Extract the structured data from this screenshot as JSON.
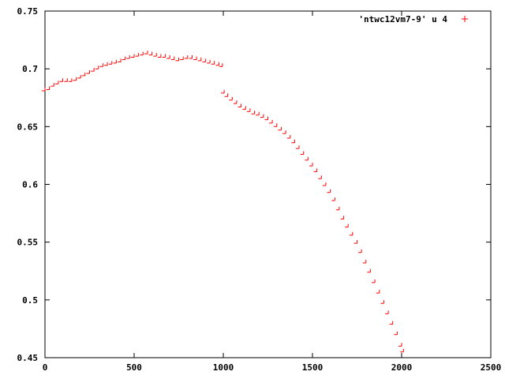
{
  "chart_data": {
    "type": "scatter",
    "title": "",
    "xlabel": "",
    "ylabel": "",
    "xlim": [
      0,
      2500
    ],
    "ylim": [
      0.45,
      0.75
    ],
    "grid": false,
    "legend_position": "top-right",
    "x_ticks": [
      0,
      500,
      1000,
      1500,
      2000,
      2500
    ],
    "x_tick_labels": [
      "0",
      "500",
      "1000",
      "1500",
      "2000",
      "2500"
    ],
    "y_ticks": [
      0.45,
      0.5,
      0.55,
      0.6,
      0.65,
      0.7,
      0.75
    ],
    "y_tick_labels": [
      "0.45",
      "0.5",
      "0.55",
      "0.6",
      "0.65",
      "0.7",
      "0.75"
    ],
    "series": [
      {
        "name": "'ntwc12vm7-9' u 4",
        "color": "#ff0000",
        "marker": "plus",
        "x": [
          0,
          25,
          50,
          75,
          100,
          125,
          150,
          175,
          200,
          225,
          250,
          275,
          300,
          325,
          350,
          375,
          400,
          425,
          450,
          475,
          500,
          525,
          550,
          575,
          600,
          625,
          650,
          675,
          700,
          725,
          750,
          775,
          800,
          825,
          850,
          875,
          900,
          925,
          950,
          975,
          995,
          1005,
          1025,
          1050,
          1075,
          1100,
          1125,
          1150,
          1175,
          1200,
          1225,
          1250,
          1275,
          1300,
          1325,
          1350,
          1375,
          1400,
          1425,
          1450,
          1475,
          1500,
          1525,
          1550,
          1575,
          1600,
          1625,
          1650,
          1675,
          1700,
          1725,
          1750,
          1775,
          1800,
          1825,
          1850,
          1875,
          1900,
          1925,
          1950,
          1975,
          2000,
          2010
        ],
        "y": [
          0.681,
          0.682,
          0.685,
          0.687,
          0.689,
          0.689,
          0.689,
          0.69,
          0.692,
          0.694,
          0.696,
          0.698,
          0.7,
          0.702,
          0.703,
          0.704,
          0.705,
          0.706,
          0.708,
          0.709,
          0.71,
          0.711,
          0.712,
          0.713,
          0.712,
          0.711,
          0.71,
          0.71,
          0.709,
          0.708,
          0.707,
          0.708,
          0.709,
          0.709,
          0.708,
          0.707,
          0.706,
          0.705,
          0.704,
          0.703,
          0.702,
          0.679,
          0.676,
          0.673,
          0.67,
          0.667,
          0.665,
          0.663,
          0.661,
          0.66,
          0.658,
          0.656,
          0.653,
          0.65,
          0.647,
          0.644,
          0.64,
          0.636,
          0.631,
          0.626,
          0.621,
          0.616,
          0.611,
          0.605,
          0.599,
          0.593,
          0.586,
          0.578,
          0.57,
          0.563,
          0.556,
          0.549,
          0.541,
          0.532,
          0.524,
          0.515,
          0.506,
          0.497,
          0.488,
          0.479,
          0.47,
          0.46,
          0.455
        ]
      }
    ]
  }
}
